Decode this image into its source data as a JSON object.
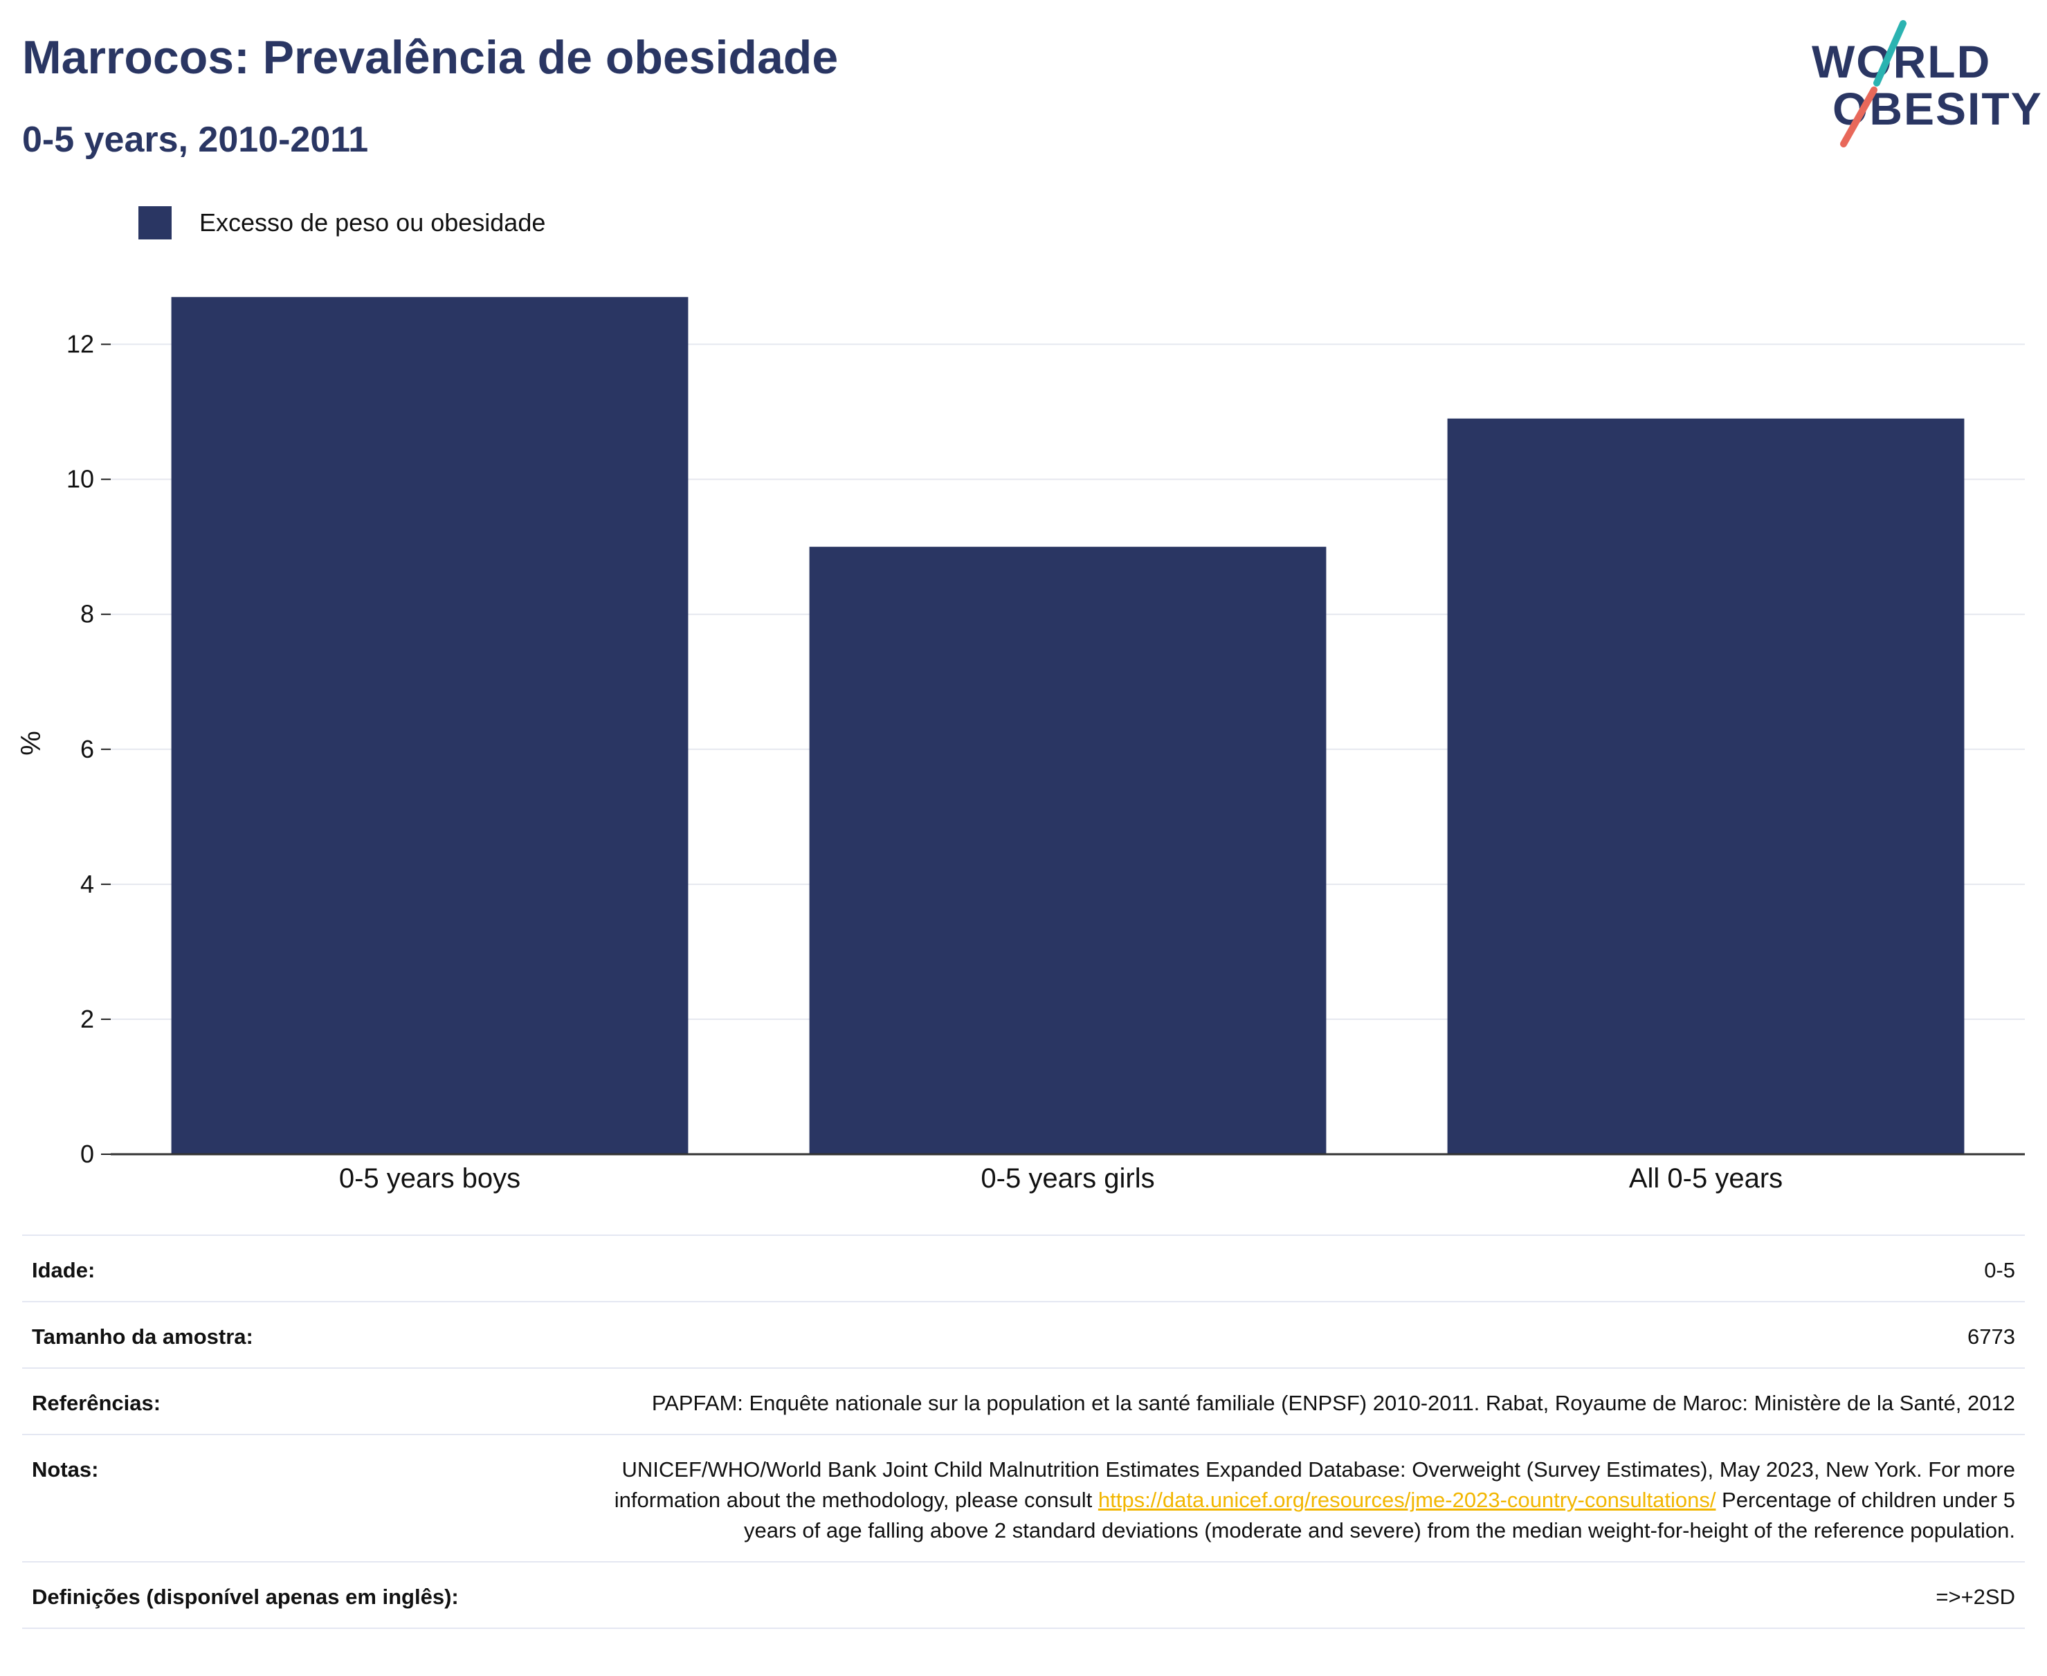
{
  "header": {
    "title": "Marrocos: Prevalência de obesidade",
    "subtitle": "0-5 years, 2010-2011"
  },
  "logo": {
    "line1": "WORLD",
    "line2": "OBESITY",
    "colors": {
      "text": "#2a3663",
      "slash_top": "#2bb3b1",
      "slash_bottom": "#e8685a"
    }
  },
  "legend": {
    "items": [
      {
        "label": "Excesso de peso ou obesidade",
        "color": "#2a3663"
      }
    ]
  },
  "chart_data": {
    "type": "bar",
    "categories": [
      "0-5 years boys",
      "0-5 years girls",
      "All 0-5 years"
    ],
    "series": [
      {
        "name": "Excesso de peso ou obesidade",
        "values": [
          12.7,
          9.0,
          10.9
        ],
        "color": "#2a3663"
      }
    ],
    "ylabel": "%",
    "ylim": [
      0,
      13
    ],
    "yticks": [
      0,
      2,
      4,
      6,
      8,
      10,
      12
    ],
    "grid": true,
    "legend_position": "top-left"
  },
  "meta": {
    "rows": [
      {
        "key": "Idade:",
        "value": "0-5"
      },
      {
        "key": "Tamanho da amostra:",
        "value": "6773"
      },
      {
        "key": "Referências:",
        "value": "PAPFAM: Enquête nationale sur la population et la santé familiale (ENPSF) 2010-2011. Rabat, Royaume de Maroc: Ministère de la Santé, 2012"
      },
      {
        "key": "Notas:",
        "value_before": "UNICEF/WHO/World Bank Joint Child Malnutrition Estimates Expanded Database: Overweight (Survey Estimates), May 2023, New York. For more information about the methodology, please consult ",
        "link": "https://data.unicef.org/resources/jme-2023-country-consultations/",
        "value_after": " Percentage of children under 5 years of age falling above 2 standard deviations (moderate and severe) from the median weight-for-height of the reference population."
      },
      {
        "key": "Definições (disponível apenas em inglês):",
        "value": "=>+2SD"
      }
    ]
  }
}
